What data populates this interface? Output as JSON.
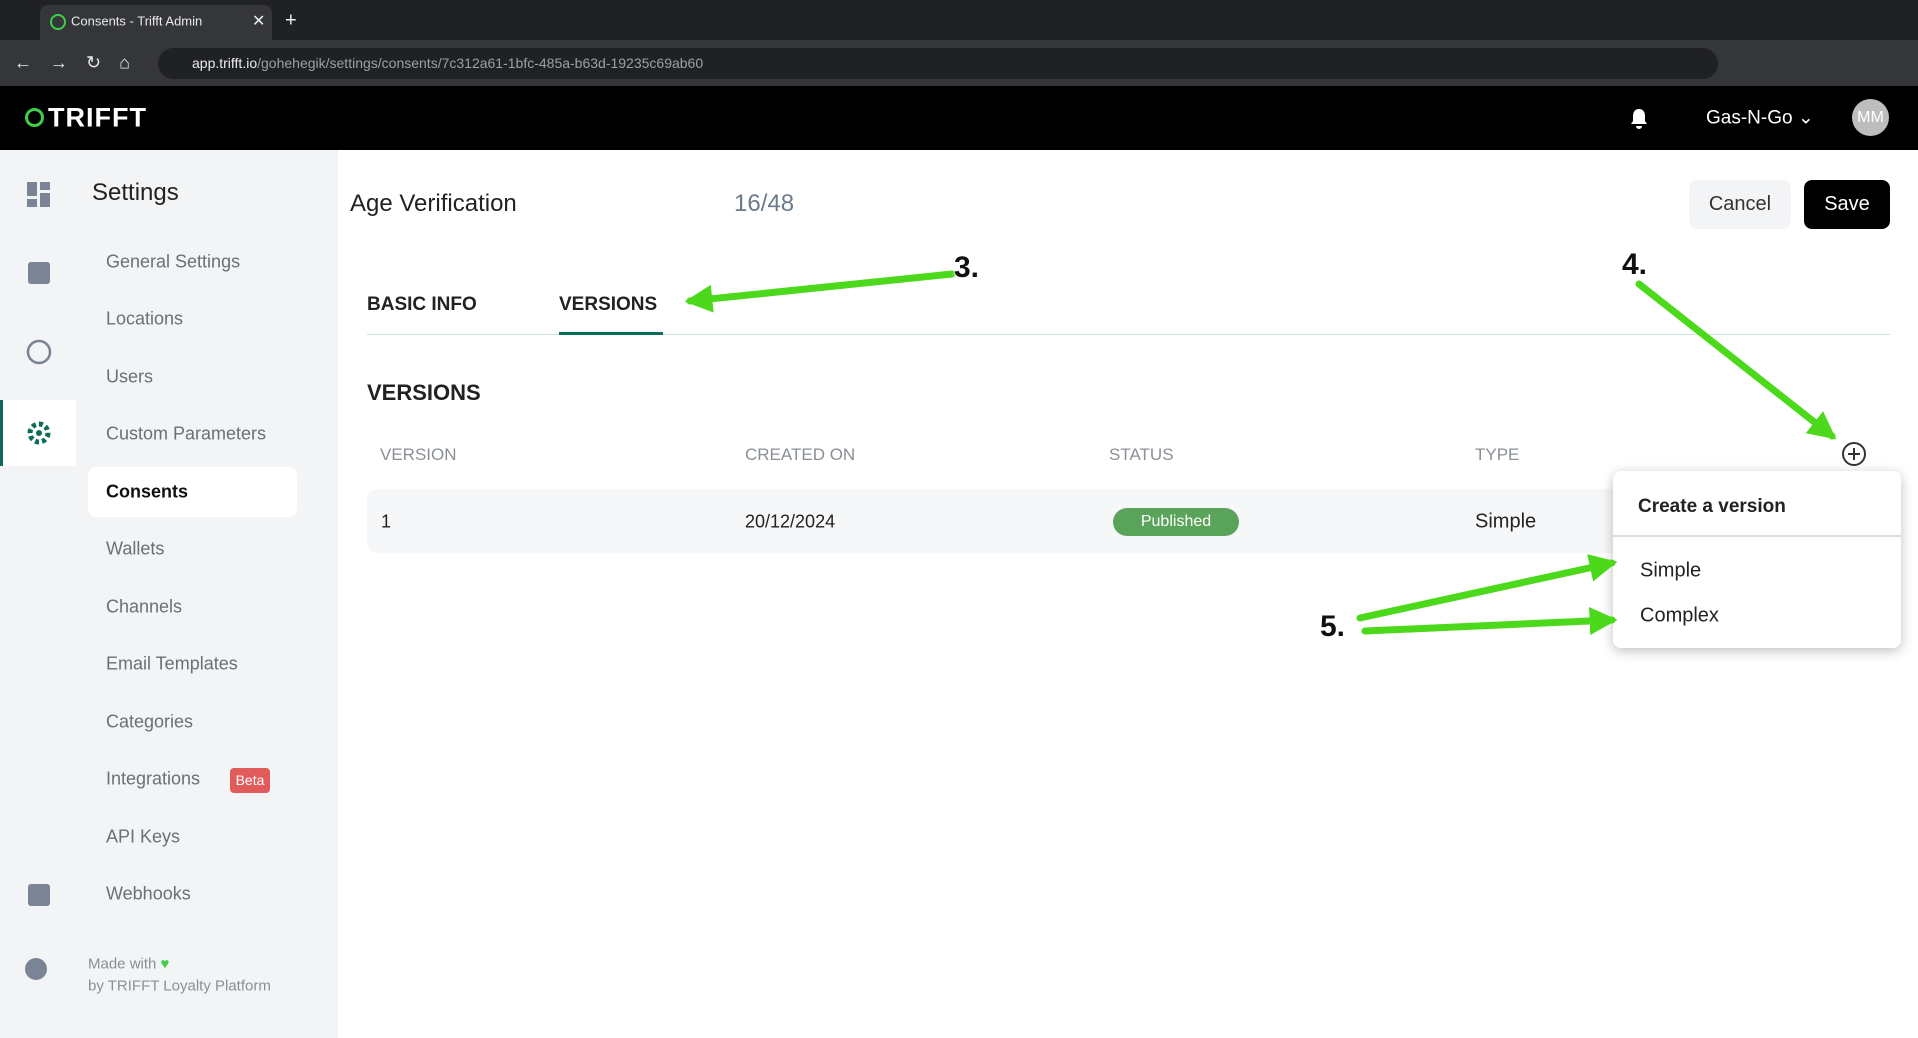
{
  "browser": {
    "tab_title": "Consents - Trifft Admin",
    "url_host": "app.trifft.io",
    "url_path": "/gohehegik/settings/consents/7c312a61-1bfc-485a-b63d-19235c69ab60"
  },
  "header": {
    "logo": "TRIFFT",
    "account": "Gas-N-Go",
    "avatar": "MM"
  },
  "sidebar": {
    "title": "Settings",
    "items": [
      "General Settings",
      "Locations",
      "Users",
      "Custom Parameters",
      "Consents",
      "Wallets",
      "Channels",
      "Email Templates",
      "Categories",
      "Integrations",
      "API Keys",
      "Webhooks"
    ],
    "badge": "Beta",
    "footer_line1": "Made with",
    "footer_line2": "by TRIFFT Loyalty Platform"
  },
  "page": {
    "title": "Age Verification",
    "counter": "16/48",
    "cancel": "Cancel",
    "save": "Save",
    "tabs": [
      "BASIC INFO",
      "VERSIONS"
    ],
    "section_title": "VERSIONS"
  },
  "table": {
    "columns": [
      "VERSION",
      "CREATED ON",
      "STATUS",
      "TYPE"
    ],
    "rows": [
      [
        "1",
        "20/12/2024",
        "Published",
        "Simple"
      ]
    ]
  },
  "dropdown": {
    "title": "Create a version",
    "options": [
      "Simple",
      "Complex"
    ]
  },
  "annotations": [
    "3.",
    "4.",
    "5."
  ]
}
